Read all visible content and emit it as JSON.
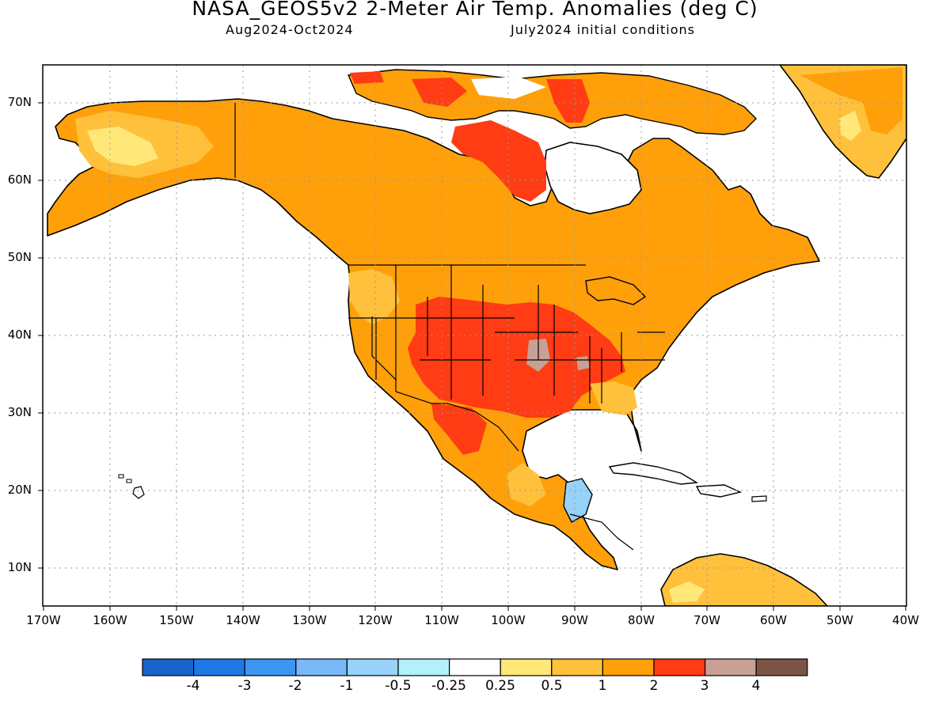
{
  "title": "NASA_GEOS5v2 2-Meter Air Temp. Anomalies (deg C)",
  "subtitle_left": "Aug2024-Oct2024",
  "subtitle_right": "July2024 initial conditions",
  "lat_labels": [
    "70N",
    "60N",
    "50N",
    "40N",
    "30N",
    "20N",
    "10N"
  ],
  "lon_labels": [
    "170W",
    "160W",
    "150W",
    "140W",
    "130W",
    "120W",
    "110W",
    "100W",
    "90W",
    "80W",
    "70W",
    "60W",
    "50W",
    "40W"
  ],
  "colorbar": {
    "colors": [
      "#1964cc",
      "#1e78e6",
      "#3c96f0",
      "#78b9fa",
      "#96d2fa",
      "#b4f0fa",
      "#ffffff",
      "#ffe878",
      "#ffc03c",
      "#ffa00a",
      "#ff3c14",
      "#c8a096",
      "#7c5446"
    ],
    "labels": [
      "-4",
      "-3",
      "-2",
      "-1",
      "-0.5",
      "-0.25",
      "0.25",
      "0.5",
      "1",
      "2",
      "3",
      "4"
    ]
  },
  "colors": {
    "land_default": "#ffa00a",
    "light_orange": "#ffc03c",
    "yellow": "#ffe878",
    "red": "#ff3c14",
    "grey_brown": "#c8a096",
    "light_blue": "#96d2fa",
    "coast": "#000000"
  }
}
